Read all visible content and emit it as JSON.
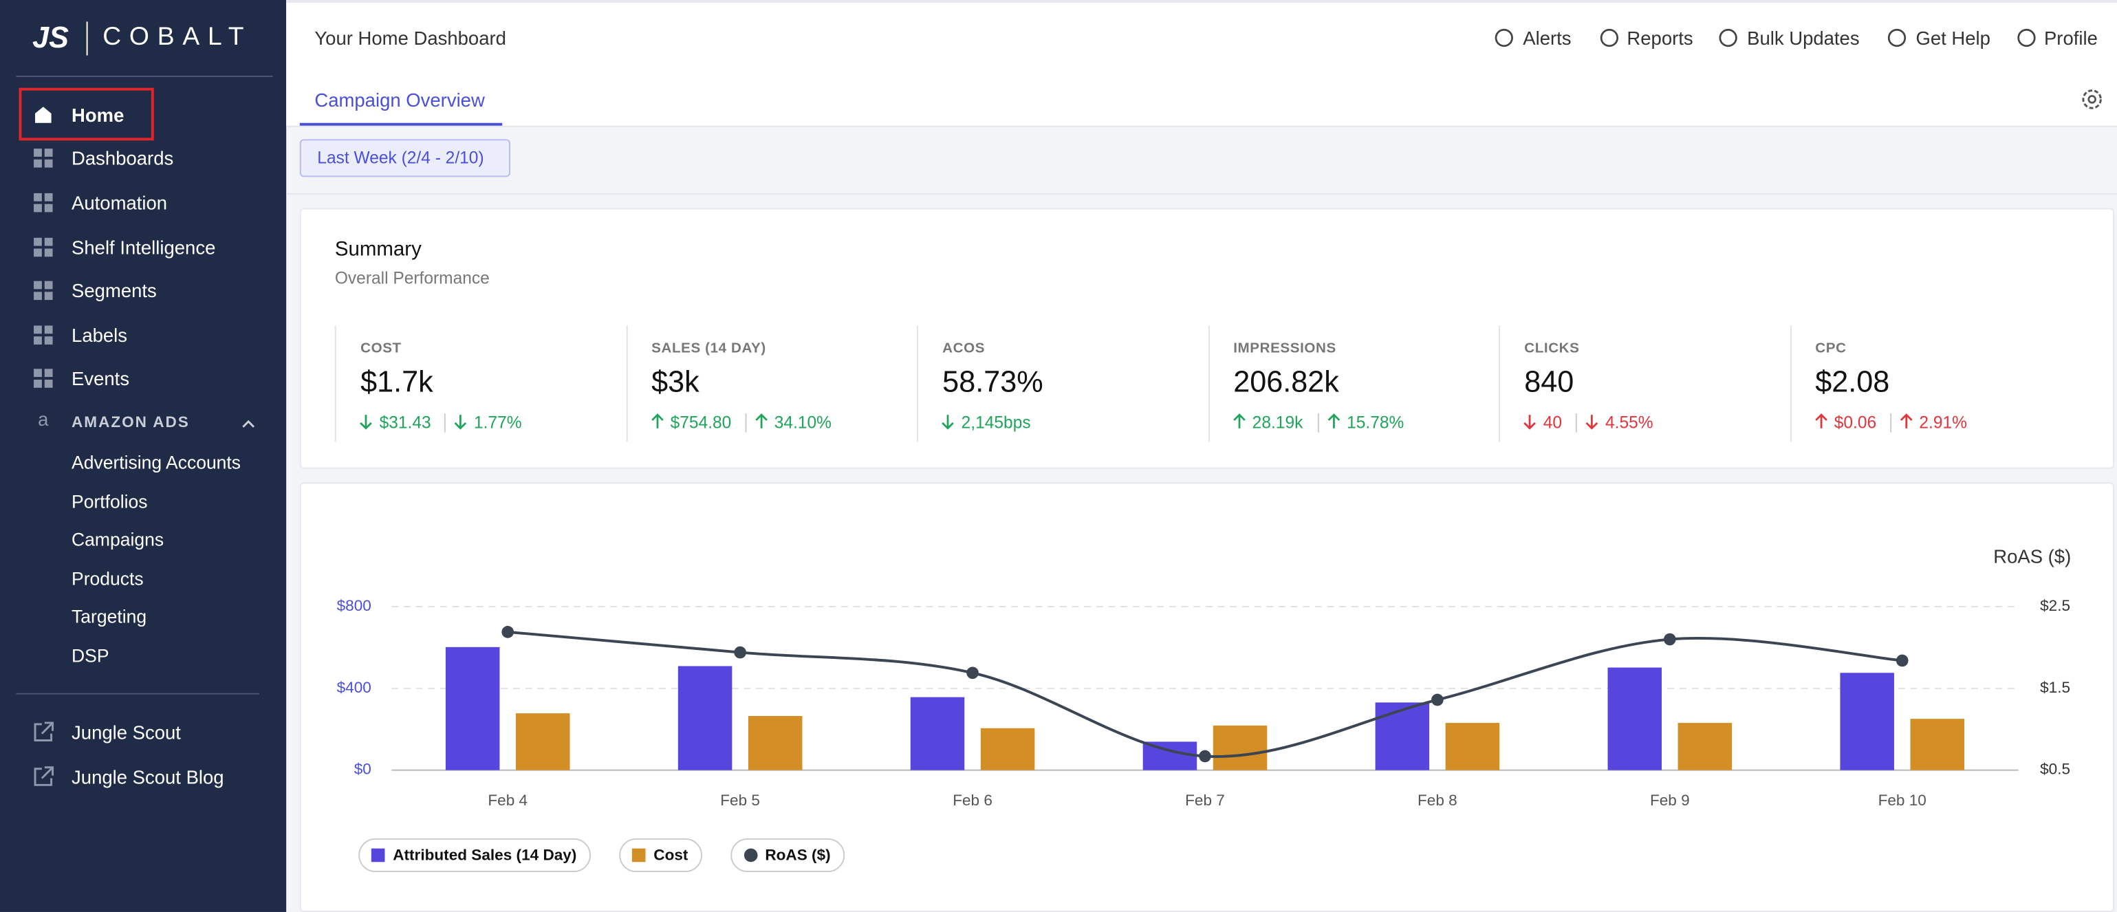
{
  "sidebar": {
    "logo": "JS",
    "brand": "COBALT",
    "nav": [
      {
        "label": "Home",
        "active": true
      },
      {
        "label": "Dashboards"
      },
      {
        "label": "Automation"
      },
      {
        "label": "Shelf Intelligence"
      },
      {
        "label": "Segments"
      },
      {
        "label": "Labels"
      },
      {
        "label": "Events"
      }
    ],
    "section": "AMAZON ADS",
    "sub": [
      "Advertising Accounts",
      "Portfolios",
      "Campaigns",
      "Products",
      "Targeting",
      "DSP"
    ],
    "external": [
      "Jungle Scout",
      "Jungle Scout Blog"
    ]
  },
  "header": {
    "title": "Your Home Dashboard",
    "links": [
      "Alerts",
      "Reports",
      "Bulk Updates",
      "Get Help",
      "Profile"
    ]
  },
  "tab": "Campaign Overview",
  "date_filter": "Last Week (2/4 - 2/10)",
  "summary": {
    "title": "Summary",
    "subtitle": "Overall Performance",
    "metrics": [
      {
        "label": "COST",
        "value": "$1.7k",
        "deltas": [
          {
            "text": "$31.43",
            "direction": "down",
            "color": "#1fa45a"
          },
          {
            "text": "1.77%",
            "direction": "down",
            "color": "#1fa45a"
          }
        ]
      },
      {
        "label": "SALES (14 DAY)",
        "value": "$3k",
        "deltas": [
          {
            "text": "$754.80",
            "direction": "up",
            "color": "#1fa45a"
          },
          {
            "text": "34.10%",
            "direction": "up",
            "color": "#1fa45a"
          }
        ]
      },
      {
        "label": "ACOS",
        "value": "58.73%",
        "deltas": [
          {
            "text": "2,145bps",
            "direction": "down",
            "color": "#1fa45a"
          }
        ]
      },
      {
        "label": "IMPRESSIONS",
        "value": "206.82k",
        "deltas": [
          {
            "text": "28.19k",
            "direction": "up",
            "color": "#1fa45a"
          },
          {
            "text": "15.78%",
            "direction": "up",
            "color": "#1fa45a"
          }
        ]
      },
      {
        "label": "CLICKS",
        "value": "840",
        "deltas": [
          {
            "text": "40",
            "direction": "down",
            "color": "#e0353b"
          },
          {
            "text": "4.55%",
            "direction": "down",
            "color": "#e0353b"
          }
        ]
      },
      {
        "label": "CPC",
        "value": "$2.08",
        "deltas": [
          {
            "text": "$0.06",
            "direction": "up",
            "color": "#e0353b"
          },
          {
            "text": "2.91%",
            "direction": "up",
            "color": "#e0353b"
          }
        ]
      }
    ]
  },
  "chart_data": {
    "type": "bar",
    "categories": [
      "Feb 4",
      "Feb 5",
      "Feb 6",
      "Feb 7",
      "Feb 8",
      "Feb 9",
      "Feb 10"
    ],
    "series": [
      {
        "name": "Attributed Sales (14 Day)",
        "color": "#5646de",
        "values": [
          602,
          509,
          357,
          139,
          331,
          502,
          476
        ]
      },
      {
        "name": "Cost",
        "color": "#d38f25",
        "values": [
          278,
          265,
          205,
          218,
          231,
          231,
          251
        ]
      },
      {
        "name": "RoAS ($)",
        "color": "#3c4653",
        "type": "line",
        "axis": "y2",
        "values": [
          2.19,
          1.94,
          1.69,
          0.67,
          1.36,
          2.1,
          1.84
        ]
      }
    ],
    "ylim": [
      0,
      800
    ],
    "yticks": [
      {
        "value": 0,
        "label": "$0"
      },
      {
        "value": 400,
        "label": "$400"
      },
      {
        "value": 800,
        "label": "$800"
      }
    ],
    "y2lim": [
      0.5,
      2.5
    ],
    "y2ticks": [
      {
        "value": 0.5,
        "label": "$0.5"
      },
      {
        "value": 1.5,
        "label": "$1.5"
      },
      {
        "value": 2.5,
        "label": "$2.5"
      }
    ],
    "y2label": "RoAS ($)",
    "grid": true
  }
}
